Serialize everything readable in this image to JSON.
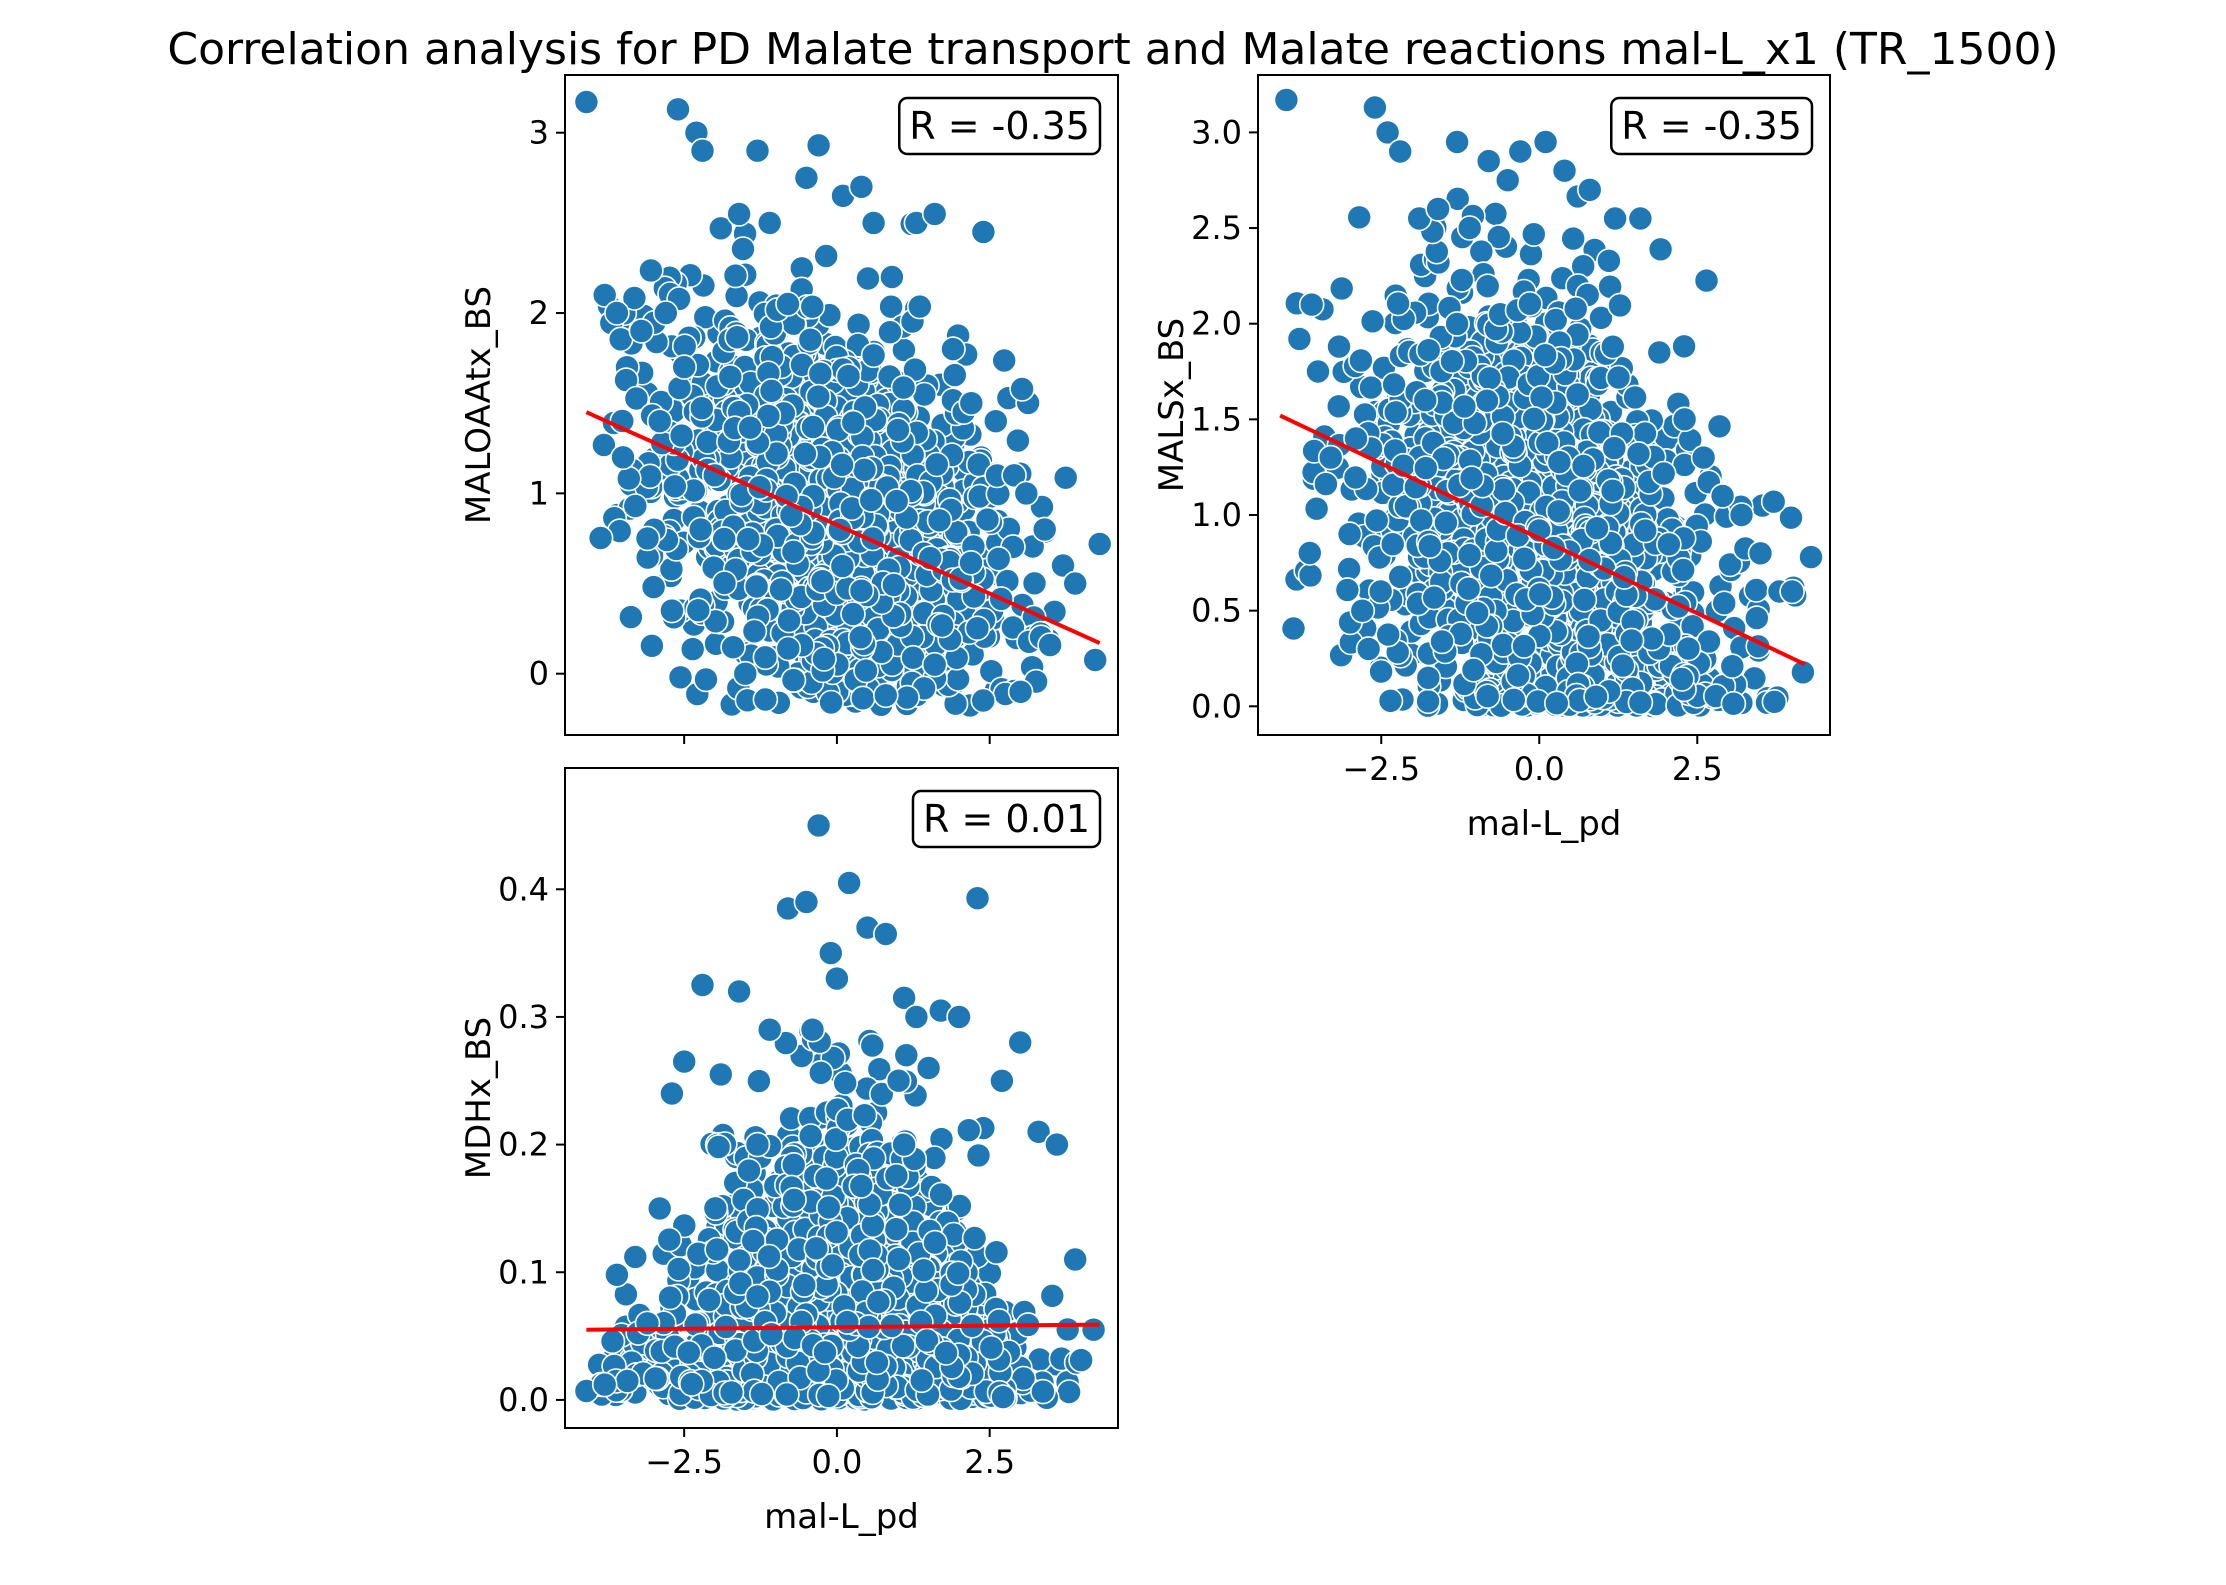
{
  "figure": {
    "title": "Correlation analysis for PD Malate transport and  Malate reactions mal-L_x1 (TR_1500)"
  },
  "colors": {
    "points": "#1f77b4",
    "fit": "#ff0000",
    "point_edge": "#ffffff"
  },
  "chart_data": [
    {
      "type": "scatter",
      "id": "maloaatx",
      "xlabel": "",
      "ylabel": "MALOAAtx_BS",
      "xlim": [
        -4.45,
        4.6
      ],
      "ylim": [
        -0.34,
        3.32
      ],
      "xticks": [
        -2.5,
        0.0,
        2.5
      ],
      "yticks": [
        0,
        1,
        2,
        3
      ],
      "ytick_labels": [
        "0",
        "1",
        "2",
        "3"
      ],
      "show_xtick_labels": false,
      "annotation": "R = -0.35",
      "fit_line": {
        "x": [
          -4.1,
          4.3
        ],
        "y": [
          1.45,
          0.17
        ]
      },
      "points": {
        "x": [
          -4.1,
          -3.8,
          -3.6,
          -3.5,
          -3.3,
          -3.1,
          -3.0,
          -2.8,
          -2.6,
          -2.5,
          -2.3,
          -2.2,
          -1.9,
          -1.6,
          -1.3,
          -1.1,
          -0.8,
          -0.5,
          -0.3,
          0.1,
          0.4,
          0.6,
          0.9,
          1.3,
          1.6,
          1.9,
          2.2,
          2.6,
          2.9,
          3.1,
          3.4,
          3.7,
          3.9,
          4.3,
          -2.9,
          -2.7,
          -1.5,
          1.6,
          -2.0,
          0.8
        ],
        "y": [
          3.17,
          2.1,
          2.0,
          1.2,
          0.93,
          0.75,
          0.48,
          2.0,
          3.13,
          1.7,
          3.0,
          2.9,
          2.47,
          2.55,
          2.9,
          2.5,
          2.05,
          2.75,
          2.93,
          2.65,
          2.7,
          2.5,
          2.2,
          2.5,
          2.55,
          1.8,
          1.5,
          1.4,
          1.1,
          1.0,
          0.8,
          0.6,
          0.5,
          0.72,
          1.4,
          0.35,
          0.0,
          0.05,
          1.1,
          -0.12
        ],
        "count": 1400,
        "distribution": "gaussian_negative_correlation"
      }
    },
    {
      "type": "scatter",
      "id": "malsx",
      "xlabel": "mal-L_pd",
      "ylabel": "MALSx_BS",
      "xlim": [
        -4.45,
        4.6
      ],
      "ylim": [
        -0.15,
        3.3
      ],
      "xticks": [
        -2.5,
        0.0,
        2.5
      ],
      "xtick_labels": [
        "−2.5",
        "0.0",
        "2.5"
      ],
      "yticks": [
        0.0,
        0.5,
        1.0,
        1.5,
        2.0,
        2.5,
        3.0
      ],
      "ytick_labels": [
        "0.0",
        "0.5",
        "1.0",
        "1.5",
        "2.0",
        "2.5",
        "3.0"
      ],
      "show_xtick_labels": true,
      "annotation": "R = -0.35",
      "fit_line": {
        "x": [
          -4.1,
          4.2
        ],
        "y": [
          1.52,
          0.22
        ]
      },
      "points": {
        "x": [
          -4.0,
          -3.6,
          -3.5,
          -3.3,
          -3.0,
          -2.8,
          -2.6,
          -2.4,
          -2.2,
          -1.9,
          -1.6,
          -1.3,
          -1.1,
          -0.8,
          -0.5,
          -0.3,
          0.1,
          0.4,
          0.8,
          1.2,
          1.6,
          1.9,
          2.3,
          2.6,
          2.9,
          3.2,
          3.5,
          3.8,
          4.0,
          4.3,
          -2.9,
          -2.7,
          0.9,
          1.6
        ],
        "y": [
          3.17,
          2.1,
          1.75,
          1.3,
          0.9,
          0.5,
          3.13,
          3.0,
          2.9,
          2.55,
          2.6,
          2.95,
          2.5,
          2.85,
          2.75,
          2.9,
          2.95,
          2.8,
          2.7,
          2.55,
          2.55,
          1.85,
          1.5,
          1.3,
          1.1,
          1.0,
          0.8,
          0.6,
          0.6,
          0.78,
          1.4,
          0.3,
          0.05,
          0.02
        ],
        "count": 1400,
        "distribution": "gaussian_negative_correlation_clipped"
      }
    },
    {
      "type": "scatter",
      "id": "mdhx",
      "xlabel": "mal-L_pd",
      "ylabel": "MDHx_BS",
      "xlim": [
        -4.45,
        4.6
      ],
      "ylim": [
        -0.022,
        0.495
      ],
      "xticks": [
        -2.5,
        0.0,
        2.5
      ],
      "xtick_labels": [
        "−2.5",
        "0.0",
        "2.5"
      ],
      "yticks": [
        0.0,
        0.1,
        0.2,
        0.3,
        0.4
      ],
      "ytick_labels": [
        "0.0",
        "0.1",
        "0.2",
        "0.3",
        "0.4"
      ],
      "show_xtick_labels": true,
      "annotation": "R = 0.01",
      "fit_line": {
        "x": [
          -4.1,
          4.3
        ],
        "y": [
          0.055,
          0.059
        ]
      },
      "points": {
        "x": [
          -4.1,
          -3.8,
          -3.6,
          -3.3,
          -3.1,
          -2.9,
          -2.7,
          -2.5,
          -2.2,
          -1.9,
          -1.6,
          -1.3,
          -1.1,
          -0.8,
          -0.5,
          -0.3,
          -0.1,
          0.2,
          0.5,
          0.8,
          1.1,
          1.3,
          1.7,
          2.0,
          2.3,
          2.7,
          3.0,
          3.3,
          3.6,
          3.9,
          4.2,
          -0.4,
          0.0,
          1.1,
          1.5
        ],
        "y": [
          0.007,
          0.012,
          0.098,
          0.112,
          0.06,
          0.15,
          0.24,
          0.265,
          0.325,
          0.255,
          0.32,
          0.2,
          0.29,
          0.385,
          0.39,
          0.45,
          0.35,
          0.405,
          0.37,
          0.365,
          0.315,
          0.3,
          0.305,
          0.3,
          0.393,
          0.25,
          0.28,
          0.21,
          0.2,
          0.11,
          0.055,
          0.29,
          0.33,
          0.2,
          0.26
        ],
        "count": 1500,
        "distribution": "gaussian_halfnormal_y"
      }
    }
  ]
}
